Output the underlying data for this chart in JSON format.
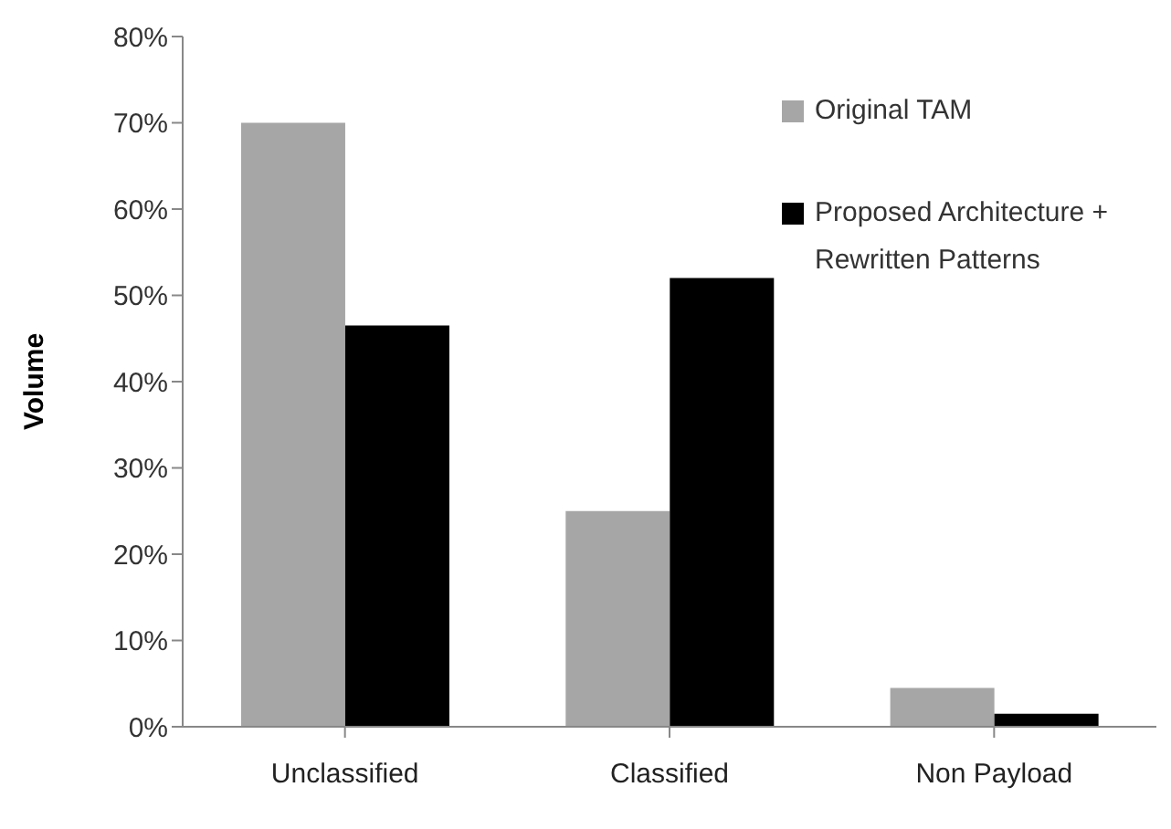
{
  "chart_data": {
    "type": "bar",
    "ylabel": "Volume",
    "categories": [
      "Unclassified",
      "Classified",
      "Non Payload"
    ],
    "series": [
      {
        "name": "Original TAM",
        "color": "#a6a6a6",
        "values": [
          70,
          25,
          4.5
        ]
      },
      {
        "name": "Proposed Architecture + Rewritten Patterns",
        "color": "#000000",
        "values": [
          46.5,
          52,
          1.5
        ]
      }
    ],
    "ylim": [
      0,
      80
    ],
    "yticks": [
      {
        "value": 0,
        "label": "0%"
      },
      {
        "value": 10,
        "label": "10%"
      },
      {
        "value": 20,
        "label": "20%"
      },
      {
        "value": 30,
        "label": "30%"
      },
      {
        "value": 40,
        "label": "40%"
      },
      {
        "value": 50,
        "label": "50%"
      },
      {
        "value": 60,
        "label": "60%"
      },
      {
        "value": 70,
        "label": "70%"
      },
      {
        "value": 80,
        "label": "80%"
      }
    ],
    "grid": false,
    "legend": "top right"
  }
}
